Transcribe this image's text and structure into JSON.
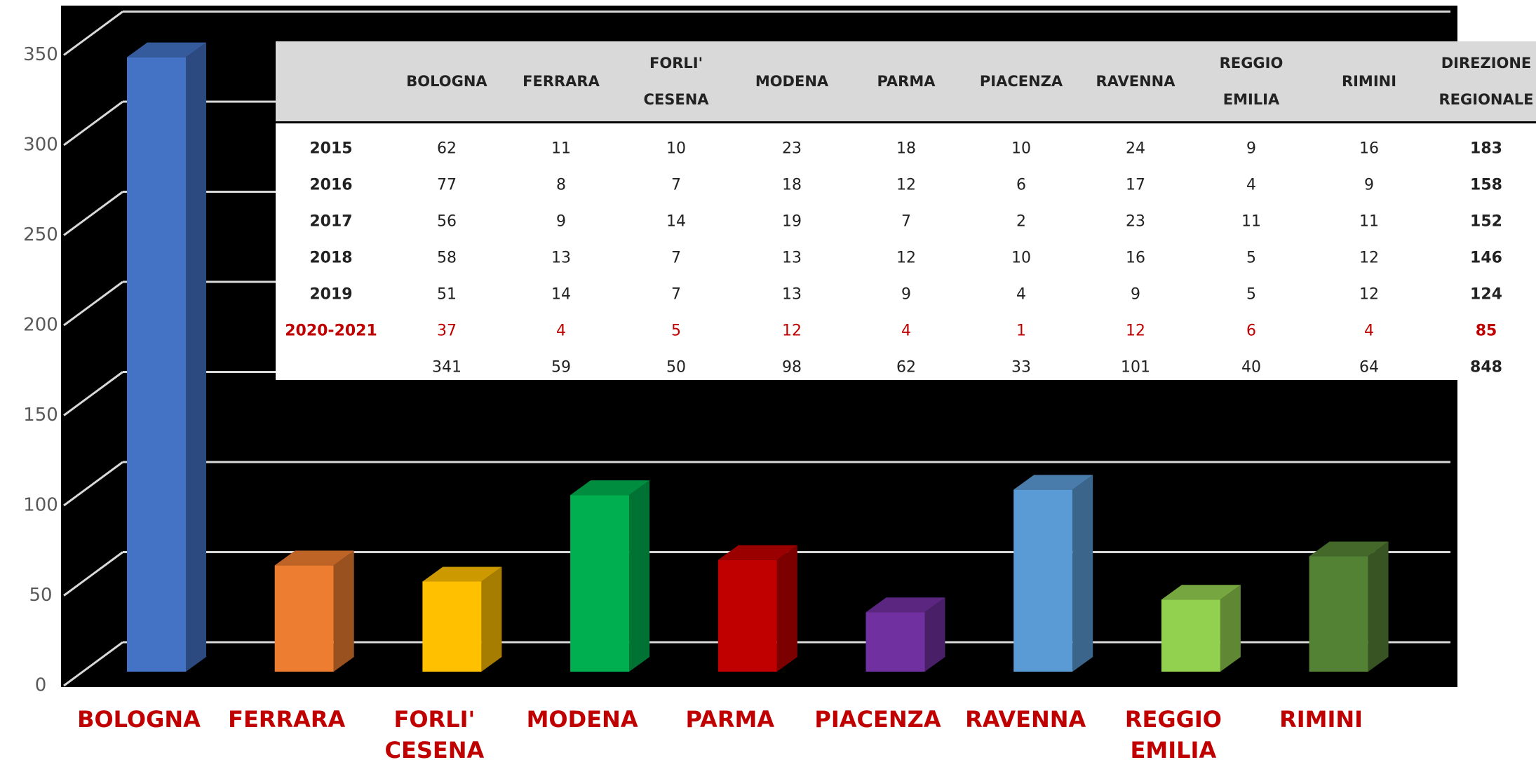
{
  "chart_data": {
    "type": "bar",
    "categories": [
      "BOLOGNA",
      "FERRARA",
      "FORLI' CESENA",
      "MODENA",
      "PARMA",
      "PIACENZA",
      "RAVENNA",
      "REGGIO EMILIA",
      "RIMINI"
    ],
    "values": [
      341,
      59,
      50,
      98,
      62,
      33,
      101,
      40,
      64
    ],
    "colors": [
      "#4472c4",
      "#ed7d31",
      "#ffc000",
      "#00b050",
      "#c00000",
      "#7030a0",
      "#5b9bd5",
      "#92d050",
      "#548235"
    ],
    "ylim": [
      0,
      350
    ],
    "yticks": [
      0,
      50,
      100,
      150,
      200,
      250,
      300,
      350
    ],
    "grid": true
  },
  "table": {
    "columns": [
      "BOLOGNA",
      "FERRARA",
      "FORLI' CESENA",
      "MODENA",
      "PARMA",
      "PIACENZA",
      "RAVENNA",
      "REGGIO EMILIA",
      "RIMINI",
      "DIREZIONE REGIONALE"
    ],
    "rows": [
      {
        "label": "2015",
        "values": [
          62,
          11,
          10,
          23,
          18,
          10,
          24,
          9,
          16,
          183
        ]
      },
      {
        "label": "2016",
        "values": [
          77,
          8,
          7,
          18,
          12,
          6,
          17,
          4,
          9,
          158
        ]
      },
      {
        "label": "2017",
        "values": [
          56,
          9,
          14,
          19,
          7,
          2,
          23,
          11,
          11,
          152
        ]
      },
      {
        "label": "2018",
        "values": [
          58,
          13,
          7,
          13,
          12,
          10,
          16,
          5,
          12,
          146
        ]
      },
      {
        "label": "2019",
        "values": [
          51,
          14,
          7,
          13,
          9,
          4,
          9,
          5,
          12,
          124
        ]
      },
      {
        "label": "2020-2021",
        "values": [
          37,
          4,
          5,
          12,
          4,
          1,
          12,
          6,
          4,
          85
        ]
      },
      {
        "values": [
          341,
          59,
          50,
          98,
          62,
          33,
          101,
          40,
          64,
          848
        ]
      }
    ]
  }
}
